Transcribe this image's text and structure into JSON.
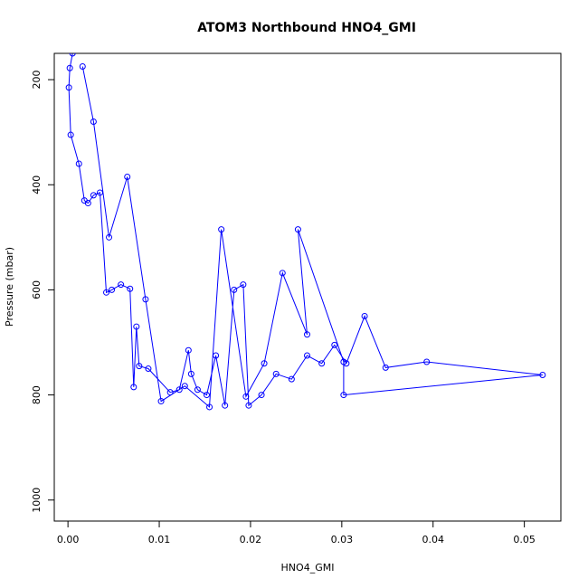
{
  "chart_data": {
    "type": "line",
    "title": "ATOM3 Northbound HNO4_GMI",
    "xlabel": "HNO4_GMI",
    "ylabel": "Pressure (mbar)",
    "xlim": [
      -0.0015,
      0.054
    ],
    "ylim": [
      1040,
      150
    ],
    "y_reversed": true,
    "x_ticks": [
      "0.00",
      "0.01",
      "0.02",
      "0.03",
      "0.04",
      "0.05"
    ],
    "x_tick_values": [
      0,
      0.01,
      0.02,
      0.03,
      0.04,
      0.05
    ],
    "y_ticks": [
      "200",
      "400",
      "600",
      "800",
      "1000"
    ],
    "y_tick_values": [
      200,
      400,
      600,
      800,
      1000
    ],
    "grid": false,
    "series_color": "#0000ff",
    "series": [
      {
        "x": [
          0.0005,
          0.0002,
          0.0001,
          0.0003,
          0.0012,
          0.0018,
          0.0022,
          0.0028,
          0.0035,
          0.0042,
          0.0048,
          0.0058,
          0.0068,
          0.0072,
          0.0075,
          0.0078,
          0.0088,
          0.0112,
          0.0122,
          0.0132,
          0.0135,
          0.0142,
          0.0152,
          0.0162,
          0.0172,
          0.0182,
          0.0192,
          0.0198,
          0.0212,
          0.0228,
          0.0245,
          0.0262,
          0.0278,
          0.0292,
          0.0305,
          0.0325,
          0.0348,
          0.0393,
          0.052,
          0.0302,
          0.0302,
          0.0252,
          0.0262,
          0.0235,
          0.0215,
          0.0195,
          0.0168,
          0.0155,
          0.0128,
          0.0102,
          0.0085,
          0.0065,
          0.0045,
          0.0028,
          0.0016
        ],
        "y": [
          150,
          178,
          215,
          305,
          360,
          430,
          435,
          420,
          415,
          605,
          600,
          590,
          598,
          785,
          670,
          745,
          750,
          795,
          790,
          715,
          760,
          790,
          800,
          725,
          820,
          600,
          590,
          820,
          800,
          760,
          770,
          725,
          740,
          705,
          740,
          650,
          748,
          737,
          762,
          800,
          737,
          485,
          685,
          568,
          740,
          803,
          485,
          823,
          783,
          812,
          618,
          385,
          500,
          280,
          175
        ]
      }
    ]
  }
}
